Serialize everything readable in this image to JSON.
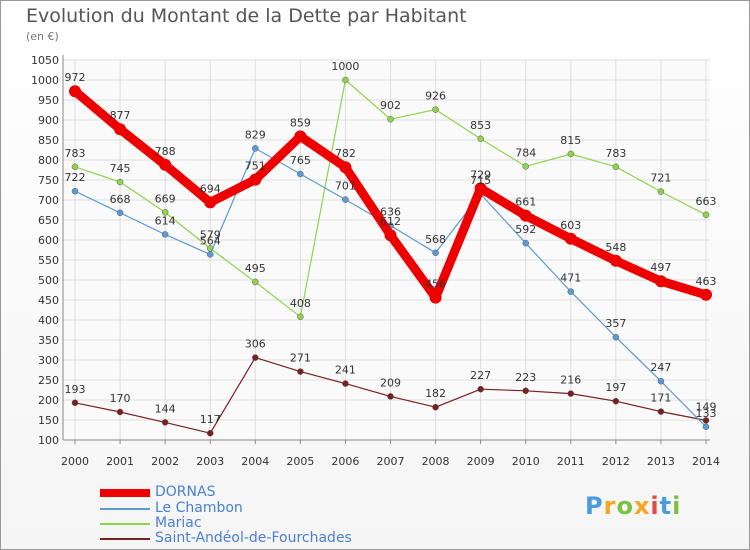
{
  "title": "Evolution du Montant de la Dette par Habitant",
  "subtitle": "(en €)",
  "logo": [
    "P",
    "r",
    "o",
    "x",
    "i",
    "t",
    "i"
  ],
  "logo_colors": [
    "#4a9be0",
    "#f5a623",
    "#7cc242",
    "#f5a623",
    "#e04a4a",
    "#4a9be0",
    "#7cc242"
  ],
  "chart_data": {
    "type": "line",
    "title": "Evolution du Montant de la Dette par Habitant",
    "ylabel": "(en €)",
    "x": [
      "2000",
      "2001",
      "2002",
      "2003",
      "2004",
      "2005",
      "2006",
      "2007",
      "2008",
      "2009",
      "2010",
      "2011",
      "2012",
      "2013",
      "2014"
    ],
    "ylim": [
      100,
      1050
    ],
    "yticks": [
      "100",
      "150",
      "200",
      "250",
      "300",
      "350",
      "400",
      "450",
      "500",
      "550",
      "600",
      "650",
      "700",
      "750",
      "800",
      "850",
      "900",
      "950",
      "1000",
      "1050"
    ],
    "grid": true,
    "legend_position": "bottom-left",
    "series": [
      {
        "name": "DORNAS",
        "color": "#ee0000",
        "values": [
          972,
          877,
          788,
          694,
          751,
          859,
          782,
          612,
          456,
          729,
          661,
          603,
          548,
          497,
          463
        ]
      },
      {
        "name": "Le Chambon",
        "color": "#5b9bd5",
        "values": [
          722,
          668,
          614,
          564,
          829,
          765,
          701,
          636,
          568,
          715,
          592,
          471,
          357,
          247,
          133
        ]
      },
      {
        "name": "Mariac",
        "color": "#8ed44c",
        "values": [
          783,
          745,
          669,
          579,
          495,
          408,
          1000,
          902,
          926,
          853,
          784,
          815,
          783,
          721,
          663
        ]
      },
      {
        "name": "Saint-Andéol-de-Fourchades",
        "color": "#7a1f1f",
        "values": [
          193,
          170,
          144,
          117,
          306,
          271,
          241,
          209,
          182,
          227,
          223,
          216,
          197,
          171,
          149
        ]
      }
    ],
    "value_labels": [
      [
        "972",
        "877",
        "788",
        "694",
        "751",
        "859",
        "782",
        "612",
        "456",
        "729",
        "661",
        "603",
        "548",
        "497",
        "463"
      ],
      [
        "722",
        "668",
        "614",
        "564",
        "829",
        "765",
        "701",
        "636",
        "568",
        "715",
        "592",
        "471",
        "357",
        "247",
        "133"
      ],
      [
        "783",
        "745",
        "669",
        "579",
        "495",
        "408",
        "1000",
        "902",
        "926",
        "853",
        "784",
        "815",
        "783",
        "721",
        "663"
      ],
      [
        "193",
        "170",
        "144",
        "117",
        "306",
        "271",
        "241",
        "209",
        "182",
        "227",
        "223",
        "216",
        "197",
        "171",
        "149"
      ]
    ]
  }
}
